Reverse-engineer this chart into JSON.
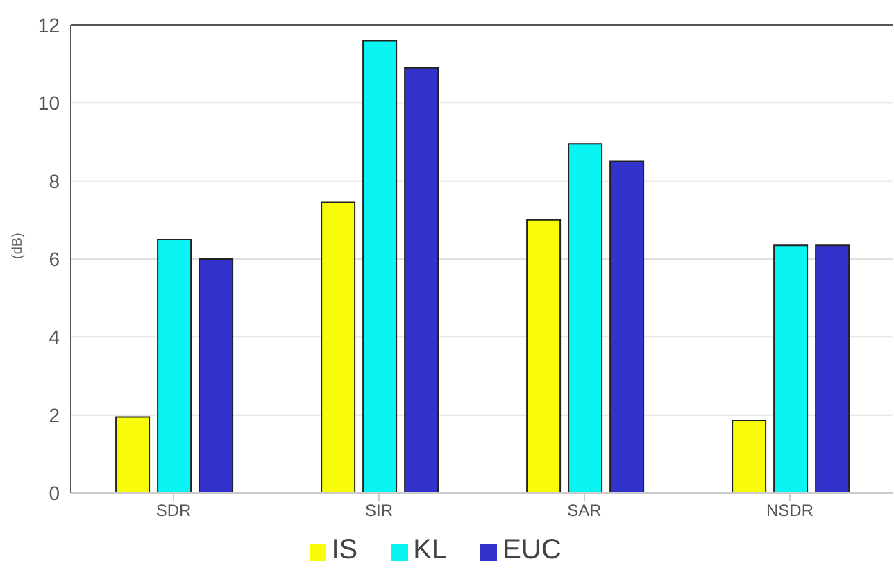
{
  "chart_data": {
    "type": "bar",
    "ylabel": "(dB)",
    "categories": [
      "SDR",
      "SIR",
      "SAR",
      "NSDR"
    ],
    "series": [
      {
        "name": "IS",
        "color": "#f8fc0a",
        "values": [
          1.95,
          7.45,
          7.0,
          1.85
        ]
      },
      {
        "name": "KL",
        "color": "#0af4f4",
        "values": [
          6.5,
          11.6,
          8.95,
          6.35
        ]
      },
      {
        "name": "EUC",
        "color": "#3333cc",
        "values": [
          6.0,
          10.9,
          8.5,
          6.35
        ]
      }
    ],
    "ylim": [
      0,
      12
    ],
    "yticks": [
      0,
      2,
      4,
      6,
      8,
      10,
      12
    ],
    "grid": "y",
    "legend": "bottom"
  }
}
